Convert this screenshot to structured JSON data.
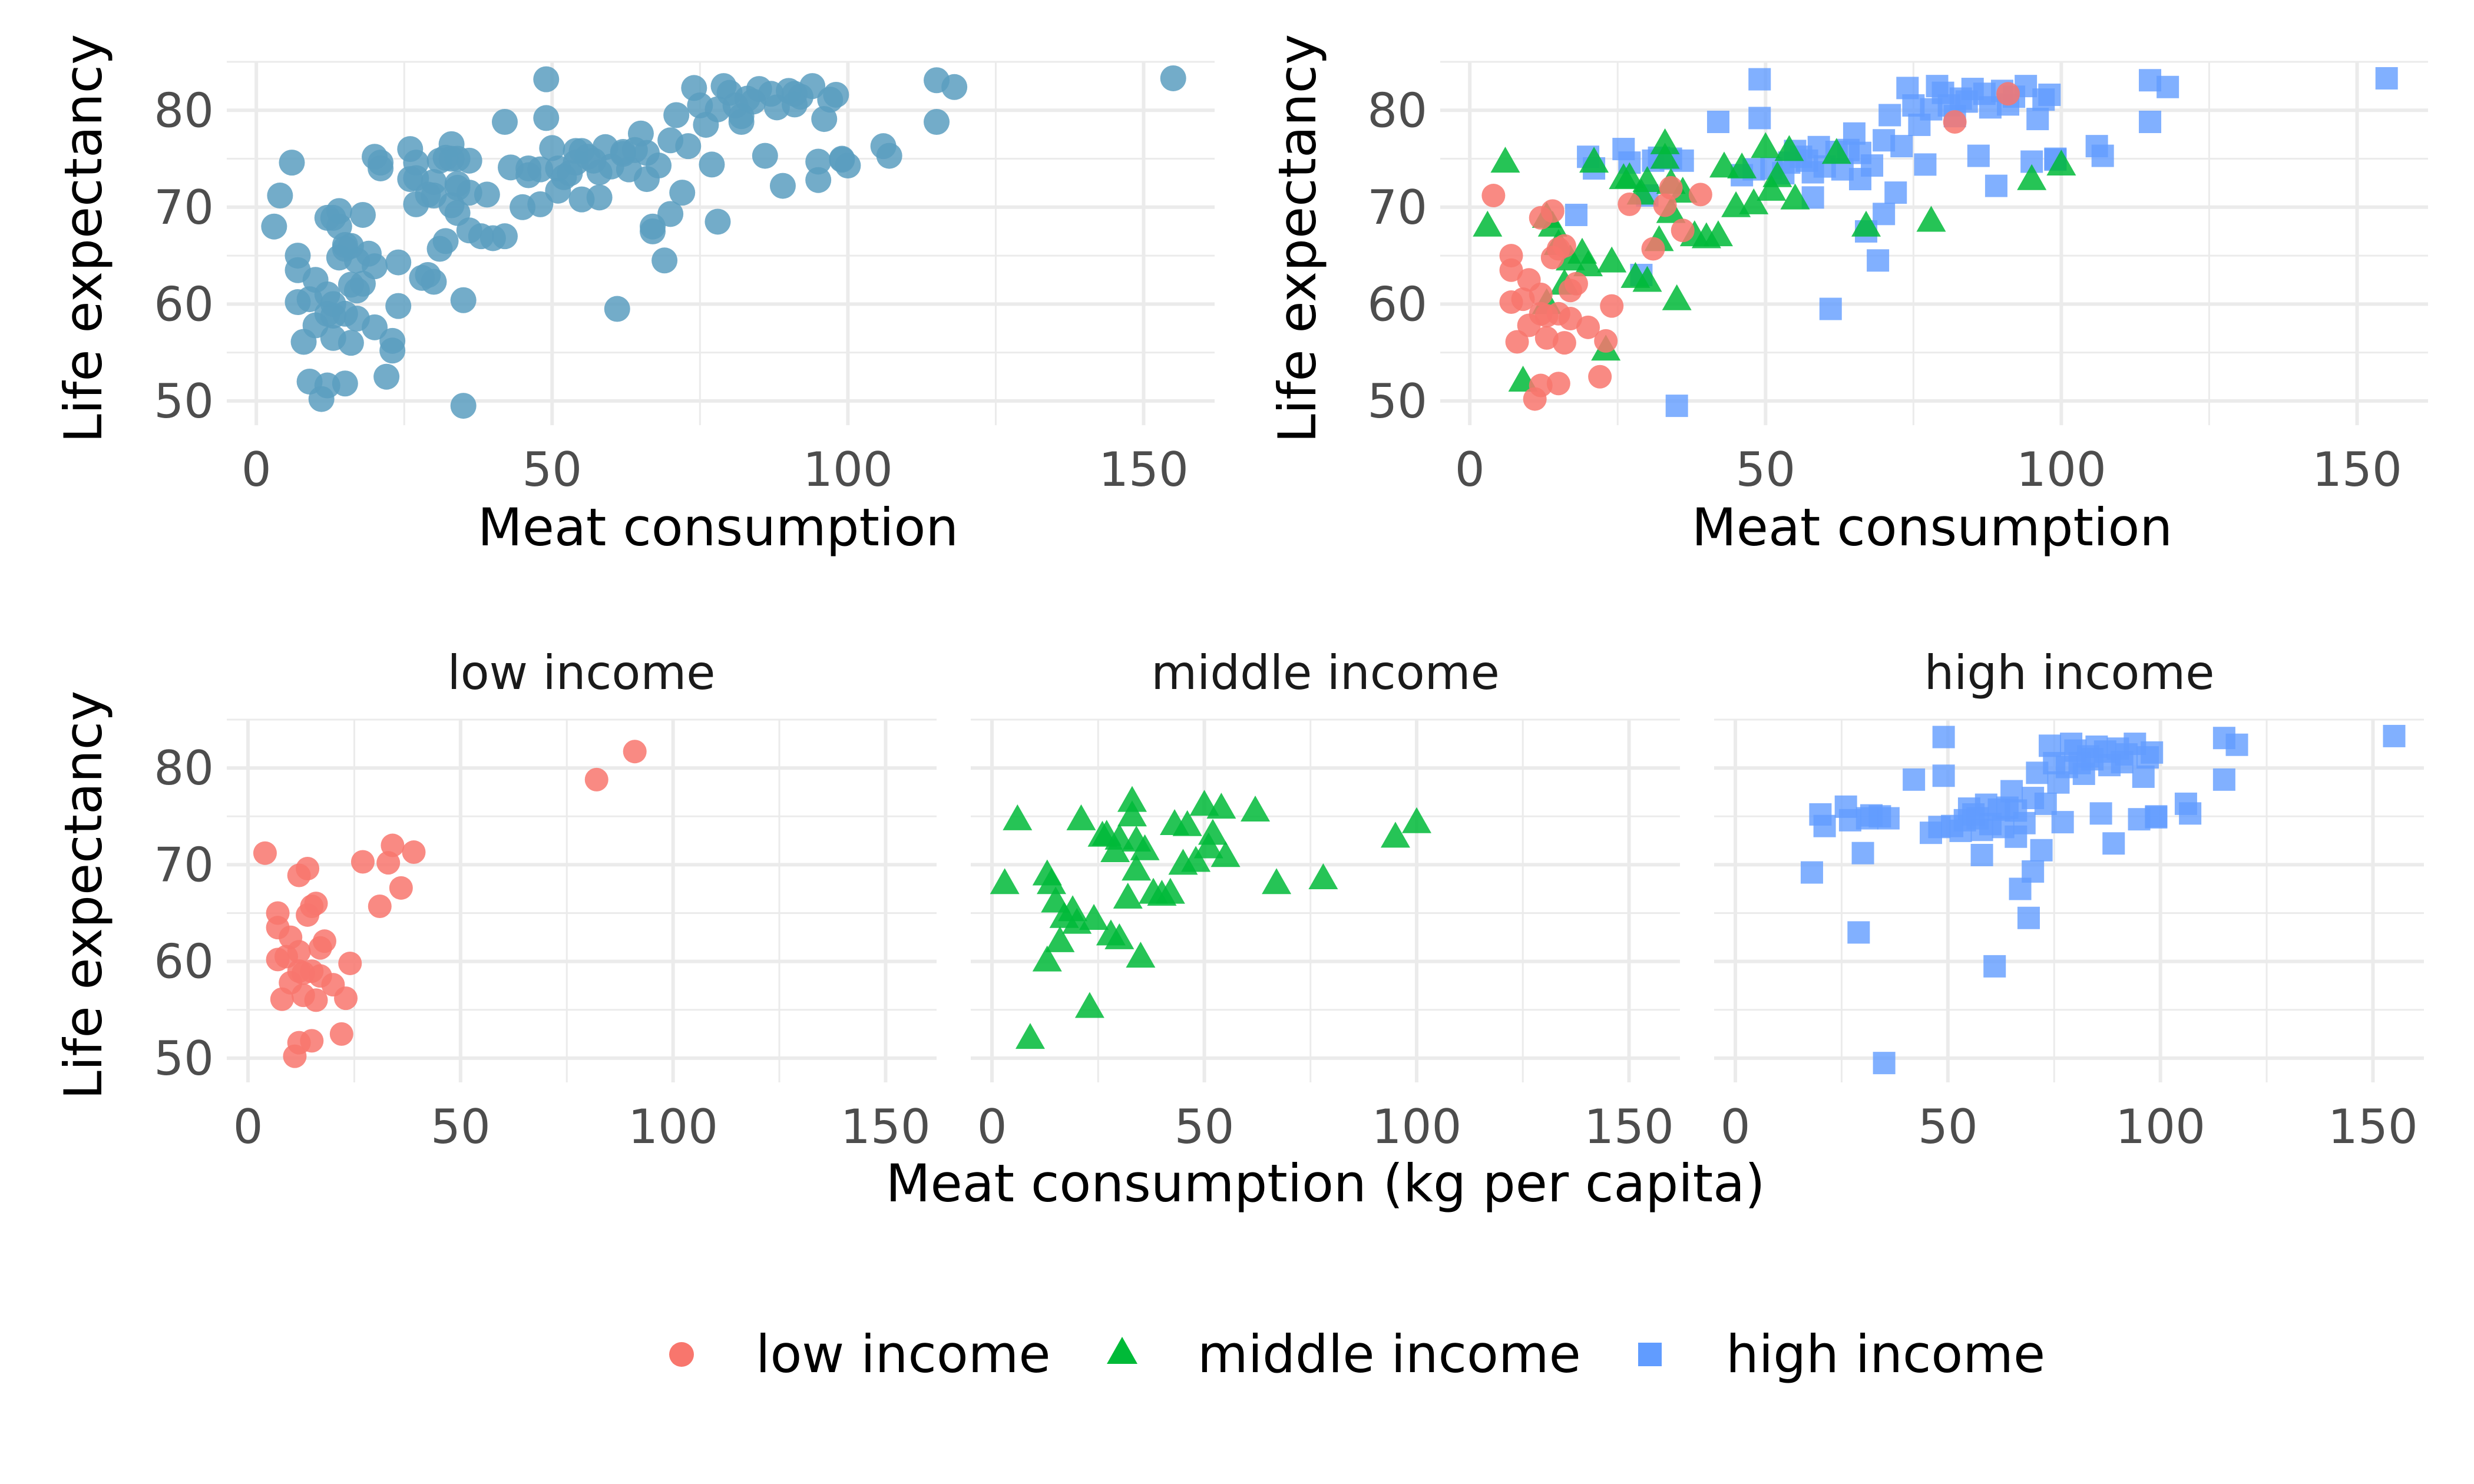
{
  "colors": {
    "low": "#F8766D",
    "middle": "#00BA38",
    "high": "#619CFF",
    "all": "#5A9EBF",
    "grid": "#EBEBEB"
  },
  "legend": [
    {
      "key": "low",
      "label": "low income",
      "shape": "circle"
    },
    {
      "key": "middle",
      "label": "middle income",
      "shape": "triangle"
    },
    {
      "key": "high",
      "label": "high income",
      "shape": "square"
    }
  ],
  "chart_data": [
    {
      "type": "scatter",
      "title": "",
      "xlabel": "Meat consumption",
      "ylabel": "Life expectancy",
      "xlim": [
        -5,
        162
      ],
      "ylim": [
        47.5,
        85
      ],
      "x_ticks": [
        "0",
        "50",
        "100",
        "150"
      ],
      "y_ticks": [
        "50",
        "60",
        "70",
        "80"
      ],
      "x_tick_values": [
        0,
        50,
        100,
        150
      ],
      "y_tick_values": [
        50,
        60,
        70,
        80
      ],
      "grid": true,
      "color_by_group": false
    },
    {
      "type": "scatter",
      "title": "",
      "xlabel": "Meat consumption",
      "ylabel": "Life expectancy",
      "xlim": [
        -5,
        162
      ],
      "ylim": [
        47.5,
        85
      ],
      "x_ticks": [
        "0",
        "50",
        "100",
        "150"
      ],
      "y_ticks": [
        "50",
        "60",
        "70",
        "80"
      ],
      "x_tick_values": [
        0,
        50,
        100,
        150
      ],
      "y_tick_values": [
        50,
        60,
        70,
        80
      ],
      "grid": true,
      "color_by_group": true
    },
    {
      "type": "scatter",
      "facet_by": "income group",
      "facets": [
        "low income",
        "middle income",
        "high income"
      ],
      "xlabel": "Meat consumption (kg per capita)",
      "ylabel": "Life expectancy",
      "xlim": [
        -5,
        162
      ],
      "ylim": [
        47.5,
        85
      ],
      "x_ticks": [
        "0",
        "50",
        "100",
        "150"
      ],
      "y_ticks": [
        "50",
        "60",
        "70",
        "80"
      ],
      "x_tick_values": [
        0,
        50,
        100,
        150
      ],
      "y_tick_values": [
        50,
        60,
        70,
        80
      ],
      "grid": true,
      "legend_position": "bottom",
      "series": [
        {
          "name": "low income",
          "group": "low",
          "points": [
            [
              4,
              71.2
            ],
            [
              7,
              63.5
            ],
            [
              7,
              60.2
            ],
            [
              7,
              65
            ],
            [
              8,
              56.1
            ],
            [
              9,
              60.5
            ],
            [
              10,
              62.5
            ],
            [
              10,
              57.8
            ],
            [
              11,
              50.2
            ],
            [
              12,
              68.9
            ],
            [
              12,
              61
            ],
            [
              12,
              59
            ],
            [
              12,
              51.6
            ],
            [
              13,
              58.8
            ],
            [
              13,
              56.5
            ],
            [
              14,
              69.6
            ],
            [
              14,
              64.8
            ],
            [
              15,
              65.7
            ],
            [
              15,
              59
            ],
            [
              15,
              51.8
            ],
            [
              16,
              66
            ],
            [
              16,
              56
            ],
            [
              17,
              58.5
            ],
            [
              17,
              61.4
            ],
            [
              18,
              62.1
            ],
            [
              20,
              57.6
            ],
            [
              22,
              52.5
            ],
            [
              23,
              56.2
            ],
            [
              24,
              59.8
            ],
            [
              27,
              70.3
            ],
            [
              31,
              65.7
            ],
            [
              33,
              70.2
            ],
            [
              34,
              72
            ],
            [
              36,
              67.6
            ],
            [
              39,
              71.3
            ],
            [
              82,
              78.8
            ],
            [
              91,
              81.7
            ]
          ]
        },
        {
          "name": "middle income",
          "group": "middle",
          "points": [
            [
              3,
              68
            ],
            [
              6,
              74.6
            ],
            [
              9,
              52
            ],
            [
              13,
              60
            ],
            [
              13,
              68.9
            ],
            [
              14,
              68
            ],
            [
              15,
              66.1
            ],
            [
              16,
              62
            ],
            [
              17,
              64.5
            ],
            [
              19,
              65.2
            ],
            [
              20,
              63.9
            ],
            [
              21,
              74.6
            ],
            [
              23,
              55.2
            ],
            [
              24,
              64.3
            ],
            [
              26,
              72.9
            ],
            [
              27,
              73
            ],
            [
              28,
              62.7
            ],
            [
              29,
              71.3
            ],
            [
              30,
              72.6
            ],
            [
              30,
              62.3
            ],
            [
              32,
              66.5
            ],
            [
              33,
              76.5
            ],
            [
              33,
              75
            ],
            [
              34,
              72.4
            ],
            [
              34,
              69.4
            ],
            [
              35,
              60.4
            ],
            [
              36,
              71.5
            ],
            [
              38,
              67
            ],
            [
              40,
              66.8
            ],
            [
              42,
              67
            ],
            [
              43,
              74.1
            ],
            [
              45,
              70
            ],
            [
              46,
              74
            ],
            [
              48,
              70.3
            ],
            [
              50,
              76.1
            ],
            [
              51,
              71.7
            ],
            [
              52,
              73.1
            ],
            [
              54,
              75.8
            ],
            [
              55,
              70.8
            ],
            [
              62,
              75.5
            ],
            [
              67,
              68
            ],
            [
              78,
              68.5
            ],
            [
              95,
              72.8
            ],
            [
              100,
              74.3
            ]
          ]
        },
        {
          "name": "high income",
          "group": "high",
          "points": [
            [
              18,
              69.2
            ],
            [
              20,
              75.2
            ],
            [
              21,
              74
            ],
            [
              26,
              76
            ],
            [
              27,
              74.6
            ],
            [
              29,
              63
            ],
            [
              30,
              71.2
            ],
            [
              31,
              74.8
            ],
            [
              32,
              75.1
            ],
            [
              34,
              75
            ],
            [
              35,
              49.5
            ],
            [
              36,
              74.8
            ],
            [
              42,
              78.8
            ],
            [
              46,
              73.3
            ],
            [
              48,
              73.9
            ],
            [
              49,
              83.2
            ],
            [
              49,
              79.2
            ],
            [
              51,
              74
            ],
            [
              53,
              73.5
            ],
            [
              54,
              74.6
            ],
            [
              55,
              75.8
            ],
            [
              56,
              75.2
            ],
            [
              57,
              74.8
            ],
            [
              58,
              73.6
            ],
            [
              58,
              71
            ],
            [
              59,
              76.2
            ],
            [
              60,
              74.2
            ],
            [
              61,
              59.5
            ],
            [
              62,
              75.7
            ],
            [
              63,
              73.9
            ],
            [
              64,
              75.9
            ],
            [
              65,
              77.6
            ],
            [
              66,
              75.6
            ],
            [
              66,
              72.9
            ],
            [
              67,
              67.5
            ],
            [
              68,
              74.3
            ],
            [
              69,
              64.5
            ],
            [
              70,
              69.3
            ],
            [
              70,
              76.9
            ],
            [
              71,
              79.5
            ],
            [
              72,
              71.5
            ],
            [
              73,
              76.3
            ],
            [
              74,
              82.3
            ],
            [
              75,
              80.5
            ],
            [
              76,
              78.5
            ],
            [
              77,
              74.4
            ],
            [
              78,
              80.1
            ],
            [
              79,
              82.5
            ],
            [
              80,
              81.8
            ],
            [
              81,
              80.5
            ],
            [
              82,
              79.4
            ],
            [
              83,
              81.2
            ],
            [
              84,
              80.9
            ],
            [
              85,
              82.2
            ],
            [
              86,
              75.3
            ],
            [
              87,
              81.7
            ],
            [
              88,
              80.3
            ],
            [
              89,
              72.2
            ],
            [
              90,
              82
            ],
            [
              91,
              80.6
            ],
            [
              92,
              81.4
            ],
            [
              94,
              82.5
            ],
            [
              95,
              74.7
            ],
            [
              96,
              79.1
            ],
            [
              97,
              81.1
            ],
            [
              98,
              81.6
            ],
            [
              99,
              74.9
            ],
            [
              99,
              75
            ],
            [
              106,
              76.3
            ],
            [
              107,
              75.3
            ],
            [
              115,
              83.1
            ],
            [
              115,
              78.8
            ],
            [
              118,
              82.4
            ],
            [
              155,
              83.3
            ]
          ]
        }
      ]
    }
  ]
}
